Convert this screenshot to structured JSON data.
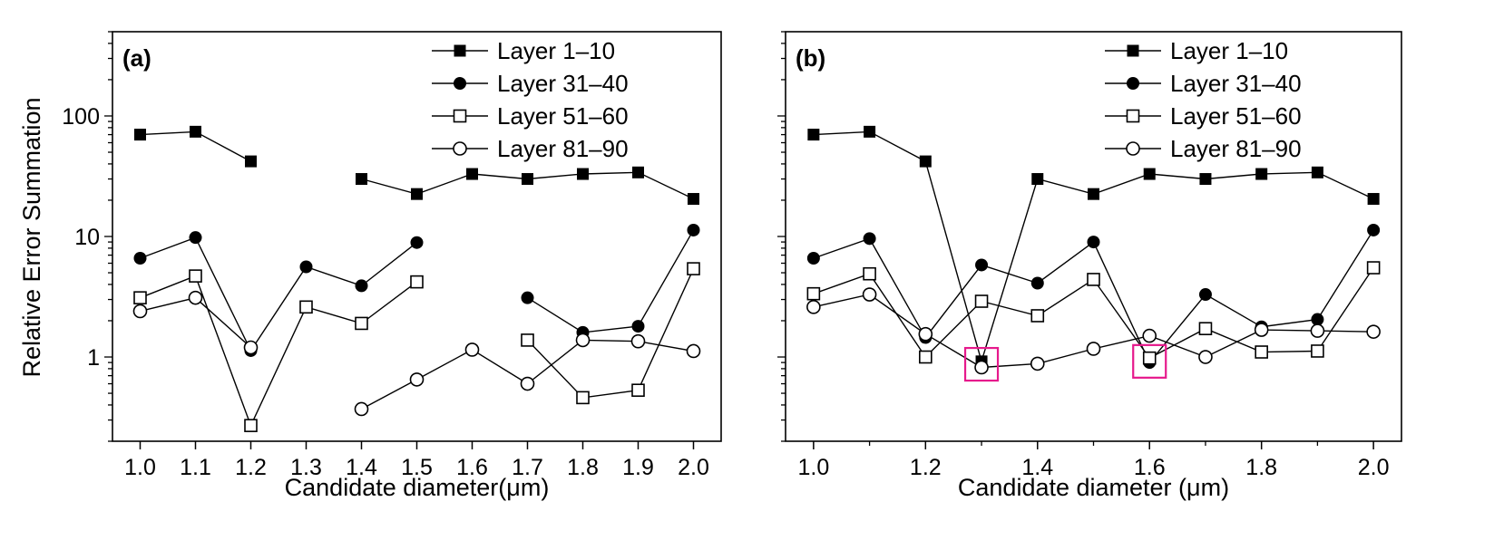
{
  "chart_data": [
    {
      "panel": "(a)",
      "type": "line",
      "scale": "log",
      "xlabel": "Candidate diameter(μm)",
      "ylabel": "Relative Error Summation",
      "xlim": [
        0.95,
        2.05
      ],
      "ylim": [
        0.2,
        500
      ],
      "x_ticks": [
        1.0,
        1.1,
        1.2,
        1.3,
        1.4,
        1.5,
        1.6,
        1.7,
        1.8,
        1.9,
        2.0
      ],
      "x_tick_labels": [
        "1.0",
        "1.1",
        "1.2",
        "1.3",
        "1.4",
        "1.5",
        "1.6",
        "1.7",
        "1.8",
        "1.9",
        "2.0"
      ],
      "y_ticks": [
        1,
        10,
        100
      ],
      "y_tick_labels": [
        "1",
        "10",
        "100"
      ],
      "legend_position": "top-right",
      "series": [
        {
          "name": "Layer 1–10",
          "marker": "filled-square",
          "segments": [
            [
              [
                1.0,
                70
              ],
              [
                1.1,
                74
              ],
              [
                1.2,
                42
              ]
            ],
            [
              [
                1.4,
                30
              ],
              [
                1.5,
                22.5
              ],
              [
                1.6,
                33
              ],
              [
                1.7,
                30
              ],
              [
                1.8,
                33
              ],
              [
                1.9,
                34
              ],
              [
                2.0,
                20.5
              ]
            ]
          ]
        },
        {
          "name": "Layer 31–40",
          "marker": "filled-circle",
          "segments": [
            [
              [
                1.0,
                6.6
              ],
              [
                1.1,
                9.8
              ],
              [
                1.2,
                1.13
              ],
              [
                1.3,
                5.6
              ],
              [
                1.4,
                3.9
              ],
              [
                1.5,
                8.9
              ]
            ],
            [
              [
                1.7,
                3.1
              ],
              [
                1.8,
                1.6
              ],
              [
                1.9,
                1.8
              ],
              [
                2.0,
                11.3
              ]
            ]
          ]
        },
        {
          "name": "Layer 51–60",
          "marker": "open-square",
          "segments": [
            [
              [
                1.0,
                3.1
              ],
              [
                1.1,
                4.7
              ],
              [
                1.2,
                0.27
              ],
              [
                1.3,
                2.6
              ],
              [
                1.4,
                1.9
              ],
              [
                1.5,
                4.2
              ]
            ],
            [
              [
                1.7,
                1.38
              ],
              [
                1.8,
                0.46
              ],
              [
                1.9,
                0.53
              ],
              [
                2.0,
                5.4
              ]
            ]
          ]
        },
        {
          "name": "Layer 81–90",
          "marker": "open-circle",
          "segments": [
            [
              [
                1.0,
                2.4
              ],
              [
                1.1,
                3.1
              ],
              [
                1.2,
                1.2
              ]
            ],
            [
              [
                1.4,
                0.37
              ],
              [
                1.5,
                0.65
              ],
              [
                1.6,
                1.15
              ],
              [
                1.7,
                0.6
              ],
              [
                1.8,
                1.38
              ],
              [
                1.9,
                1.35
              ],
              [
                2.0,
                1.12
              ]
            ]
          ]
        }
      ],
      "highlights": []
    },
    {
      "panel": "(b)",
      "type": "line",
      "scale": "log",
      "xlabel": "Candidate diameter (μm)",
      "ylabel": "",
      "xlim": [
        0.95,
        2.05
      ],
      "ylim": [
        0.2,
        500
      ],
      "x_ticks": [
        1.0,
        1.2,
        1.4,
        1.6,
        1.8,
        2.0
      ],
      "x_tick_labels": [
        "1.0",
        "1.2",
        "1.4",
        "1.6",
        "1.8",
        "2.0"
      ],
      "y_ticks": [
        1,
        10,
        100
      ],
      "y_tick_labels": [],
      "legend_position": "top-right",
      "series": [
        {
          "name": "Layer 1–10",
          "marker": "filled-square",
          "segments": [
            [
              [
                1.0,
                70
              ],
              [
                1.1,
                74
              ],
              [
                1.2,
                42
              ],
              [
                1.3,
                0.92
              ],
              [
                1.4,
                30
              ],
              [
                1.5,
                22.5
              ],
              [
                1.6,
                33
              ],
              [
                1.7,
                30
              ],
              [
                1.8,
                33
              ],
              [
                1.9,
                34
              ],
              [
                2.0,
                20.5
              ]
            ]
          ]
        },
        {
          "name": "Layer 31–40",
          "marker": "filled-circle",
          "segments": [
            [
              [
                1.0,
                6.6
              ],
              [
                1.1,
                9.6
              ],
              [
                1.2,
                1.45
              ],
              [
                1.3,
                5.8
              ],
              [
                1.4,
                4.1
              ],
              [
                1.5,
                9.0
              ],
              [
                1.6,
                0.9
              ],
              [
                1.7,
                3.3
              ],
              [
                1.8,
                1.78
              ],
              [
                1.9,
                2.05
              ],
              [
                2.0,
                11.3
              ]
            ]
          ]
        },
        {
          "name": "Layer 51–60",
          "marker": "open-square",
          "segments": [
            [
              [
                1.0,
                3.35
              ],
              [
                1.1,
                4.9
              ],
              [
                1.2,
                1.0
              ],
              [
                1.3,
                2.9
              ],
              [
                1.4,
                2.2
              ],
              [
                1.5,
                4.4
              ],
              [
                1.6,
                0.98
              ],
              [
                1.7,
                1.72
              ],
              [
                1.8,
                1.1
              ],
              [
                1.9,
                1.12
              ],
              [
                2.0,
                5.5
              ]
            ]
          ]
        },
        {
          "name": "Layer 81–90",
          "marker": "open-circle",
          "segments": [
            [
              [
                1.0,
                2.6
              ],
              [
                1.1,
                3.3
              ],
              [
                1.2,
                1.55
              ],
              [
                1.3,
                0.82
              ],
              [
                1.4,
                0.88
              ],
              [
                1.5,
                1.17
              ],
              [
                1.6,
                1.5
              ],
              [
                1.7,
                1.0
              ],
              [
                1.8,
                1.68
              ],
              [
                1.9,
                1.65
              ],
              [
                2.0,
                1.62
              ]
            ]
          ]
        }
      ],
      "highlights": [
        {
          "x": 1.3,
          "y": 0.87,
          "color": "#e6198c"
        },
        {
          "x": 1.6,
          "y": 0.92,
          "color": "#e6198c"
        }
      ]
    }
  ]
}
